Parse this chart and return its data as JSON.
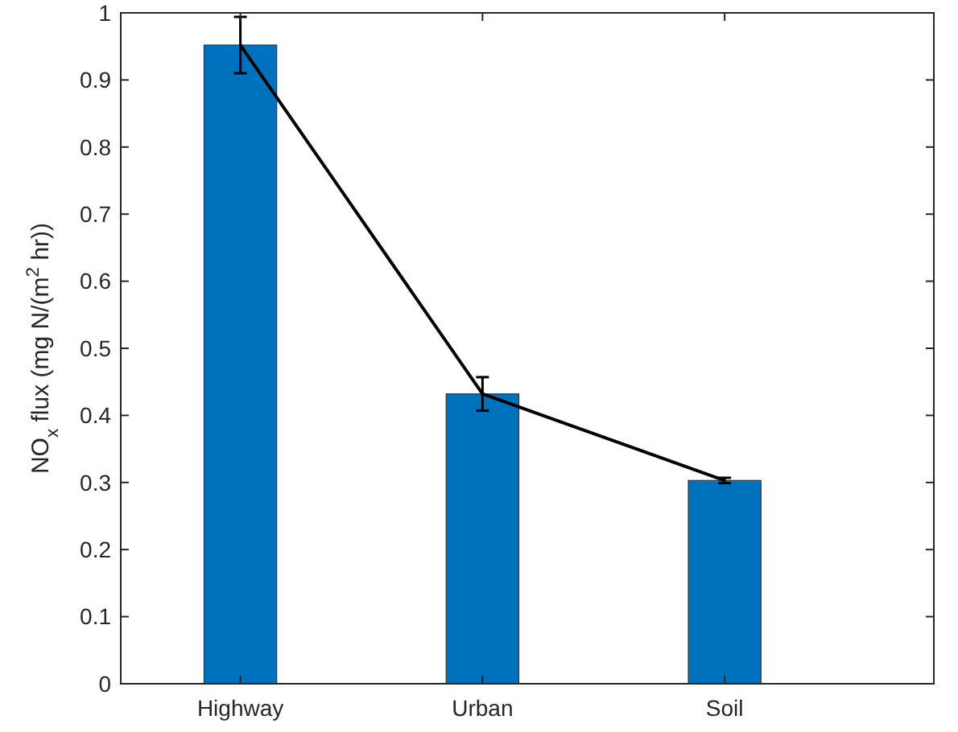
{
  "chart_data": {
    "type": "bar",
    "ylabel": "NO$_{x}$ flux (mg N/(m$^{2}$ hr))",
    "categories": [
      "Highway",
      "Urban",
      "Soil"
    ],
    "series": [
      {
        "color": "#0072bd",
        "values": [
          0.952,
          0.432,
          0.303
        ]
      },
      {
        "type": "line",
        "color": "#000000",
        "values": [
          0.952,
          0.432,
          0.303
        ],
        "errors": [
          0.042,
          0.025,
          0.004
        ],
        "marker": "none",
        "line_style": "solid"
      }
    ],
    "ylim": [
      0,
      1
    ],
    "yticks": [
      0,
      0.1,
      0.2,
      0.3,
      0.4,
      0.5,
      0.6,
      0.7,
      0.8,
      0.9,
      1
    ],
    "grid": false
  }
}
